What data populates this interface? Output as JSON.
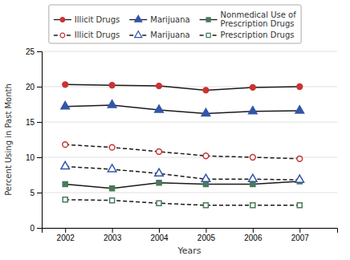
{
  "chart_data": {
    "type": "line",
    "xlabel": "Years",
    "ylabel": "Percent Using in Past Month",
    "x": [
      2002,
      2003,
      2004,
      2005,
      2006,
      2007
    ],
    "xlim": [
      2001.5,
      2007.8
    ],
    "xticks": [
      2002,
      2003,
      2004,
      2005,
      2006,
      2007
    ],
    "ylim": [
      0,
      25
    ],
    "yticks": [
      0,
      5,
      10,
      15,
      20,
      25
    ],
    "grid": true,
    "color": "#1a1a1a",
    "series": [
      {
        "name": "Illicit Drugs",
        "color": "#cc3333",
        "marker": "circle",
        "line_style": "solid",
        "values": [
          20.3,
          20.2,
          20.1,
          19.5,
          19.9,
          20.0
        ]
      },
      {
        "name": "Marijuana",
        "color": "#3355aa",
        "marker": "triangle",
        "line_style": "solid",
        "values": [
          17.2,
          17.4,
          16.7,
          16.2,
          16.5,
          16.6
        ]
      },
      {
        "name": "Nonmedical Use of\nPrescription Drugs",
        "color": "#4a7a5a",
        "marker": "square",
        "line_style": "solid",
        "values": [
          6.2,
          5.6,
          6.4,
          6.2,
          6.2,
          6.6
        ]
      },
      {
        "name": "Illicit Drugs",
        "color": "#cc3333",
        "marker": "open-circle",
        "line_style": "dashed",
        "values": [
          11.8,
          11.4,
          10.8,
          10.2,
          10.0,
          9.8
        ]
      },
      {
        "name": "Marijuana",
        "color": "#3355aa",
        "marker": "open-triangle",
        "line_style": "dashed",
        "values": [
          8.7,
          8.3,
          7.7,
          6.9,
          6.9,
          6.8
        ]
      },
      {
        "name": "Prescription Drugs",
        "color": "#4a7a5a",
        "marker": "open-square",
        "line_style": "dashed",
        "values": [
          4.0,
          3.9,
          3.5,
          3.2,
          3.2,
          3.2
        ]
      }
    ]
  }
}
